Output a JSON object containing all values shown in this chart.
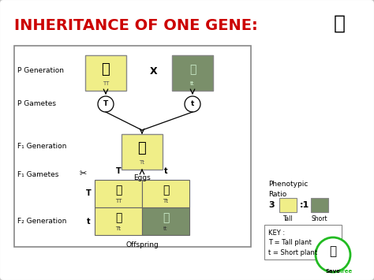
{
  "title": "INHERITANCE OF ONE GENE:",
  "title_color": "#CC0000",
  "title_fontsize": 14,
  "bg_color": "#FFFFFF",
  "slide_bg": "#E8E8E8",
  "border_color": "#888888",
  "yellow_color": "#F0EE88",
  "green_color": "#7A8F6A",
  "label_P_gen": "P Generation",
  "label_P_gam": "P Gametes",
  "label_F1_gen": "F₁ Generation",
  "label_F1_gam": "F₁ Gametes",
  "label_F2_gen": "F₂ Generation",
  "label_TT": "TT",
  "label_tt": "tt",
  "label_Tt": "Tt",
  "label_x": "X",
  "label_T_circle": "T",
  "label_t_circle": "t",
  "label_eggs": "Eggs",
  "label_offspring": "Offspring",
  "label_pheno": "Phenotypic\nRatio",
  "label_3": "3",
  "label_1": ":1",
  "label_tall": "Tall",
  "label_short": "Short",
  "key_text": "KEY :\nT = Tall plant\nt = Short plant",
  "punnett_colors": [
    "#F0EE88",
    "#F0EE88",
    "#F0EE88",
    "#7A8F6A"
  ]
}
